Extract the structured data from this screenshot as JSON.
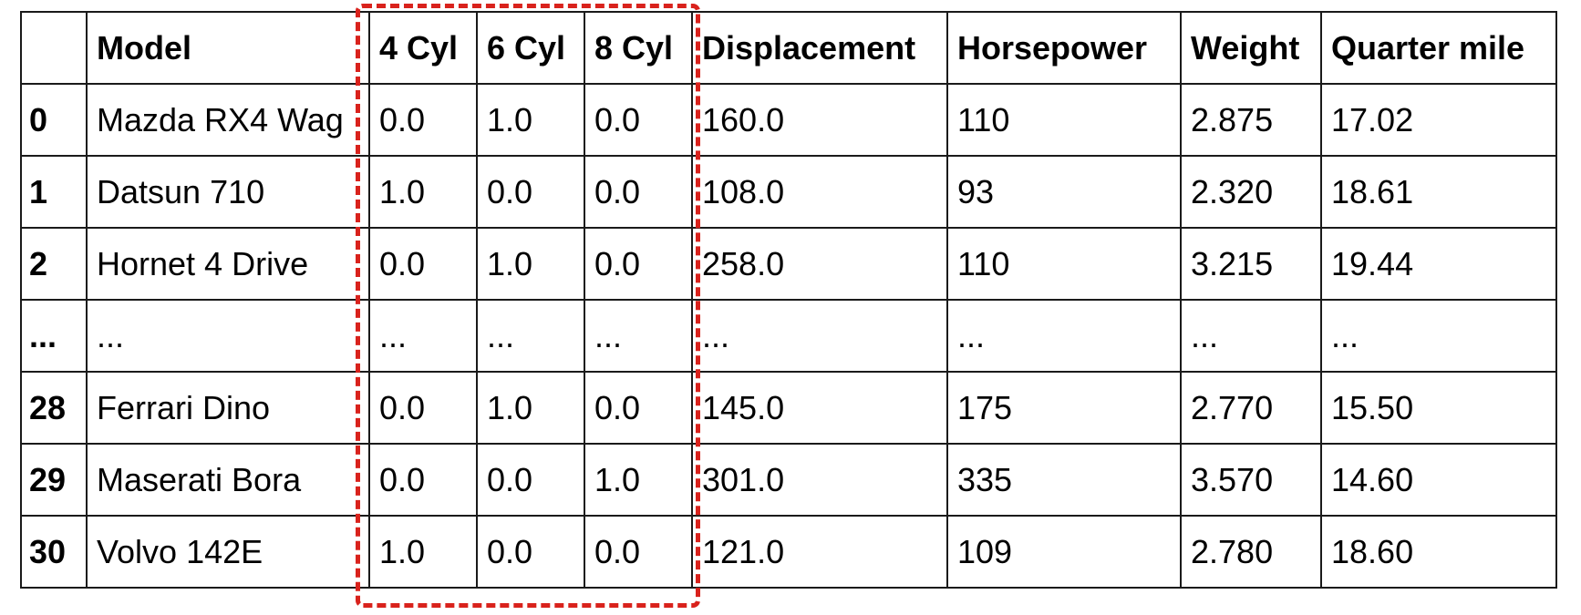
{
  "table": {
    "columns": [
      "",
      "Model",
      "4 Cyl",
      "6 Cyl",
      "8 Cyl",
      "Displacement",
      "Horsepower",
      "Weight",
      "Quarter mile"
    ],
    "rows": [
      [
        "0",
        "Mazda RX4 Wag",
        "0.0",
        "1.0",
        "0.0",
        "160.0",
        "110",
        "2.875",
        "17.02"
      ],
      [
        "1",
        "Datsun 710",
        "1.0",
        "0.0",
        "0.0",
        "108.0",
        "93",
        "2.320",
        "18.61"
      ],
      [
        "2",
        "Hornet 4 Drive",
        "0.0",
        "1.0",
        "0.0",
        "258.0",
        "110",
        "3.215",
        "19.44"
      ],
      [
        "...",
        "...",
        "...",
        "...",
        "...",
        "...",
        "...",
        "...",
        "..."
      ],
      [
        "28",
        "Ferrari Dino",
        "0.0",
        "1.0",
        "0.0",
        "145.0",
        "175",
        "2.770",
        "15.50"
      ],
      [
        "29",
        "Maserati Bora",
        "0.0",
        "0.0",
        "1.0",
        "301.0",
        "335",
        "3.570",
        "14.60"
      ],
      [
        "30",
        "Volvo 142E",
        "1.0",
        "0.0",
        "0.0",
        "121.0",
        "109",
        "2.780",
        "18.60"
      ]
    ]
  },
  "highlight": {
    "color": "#d9221c"
  }
}
